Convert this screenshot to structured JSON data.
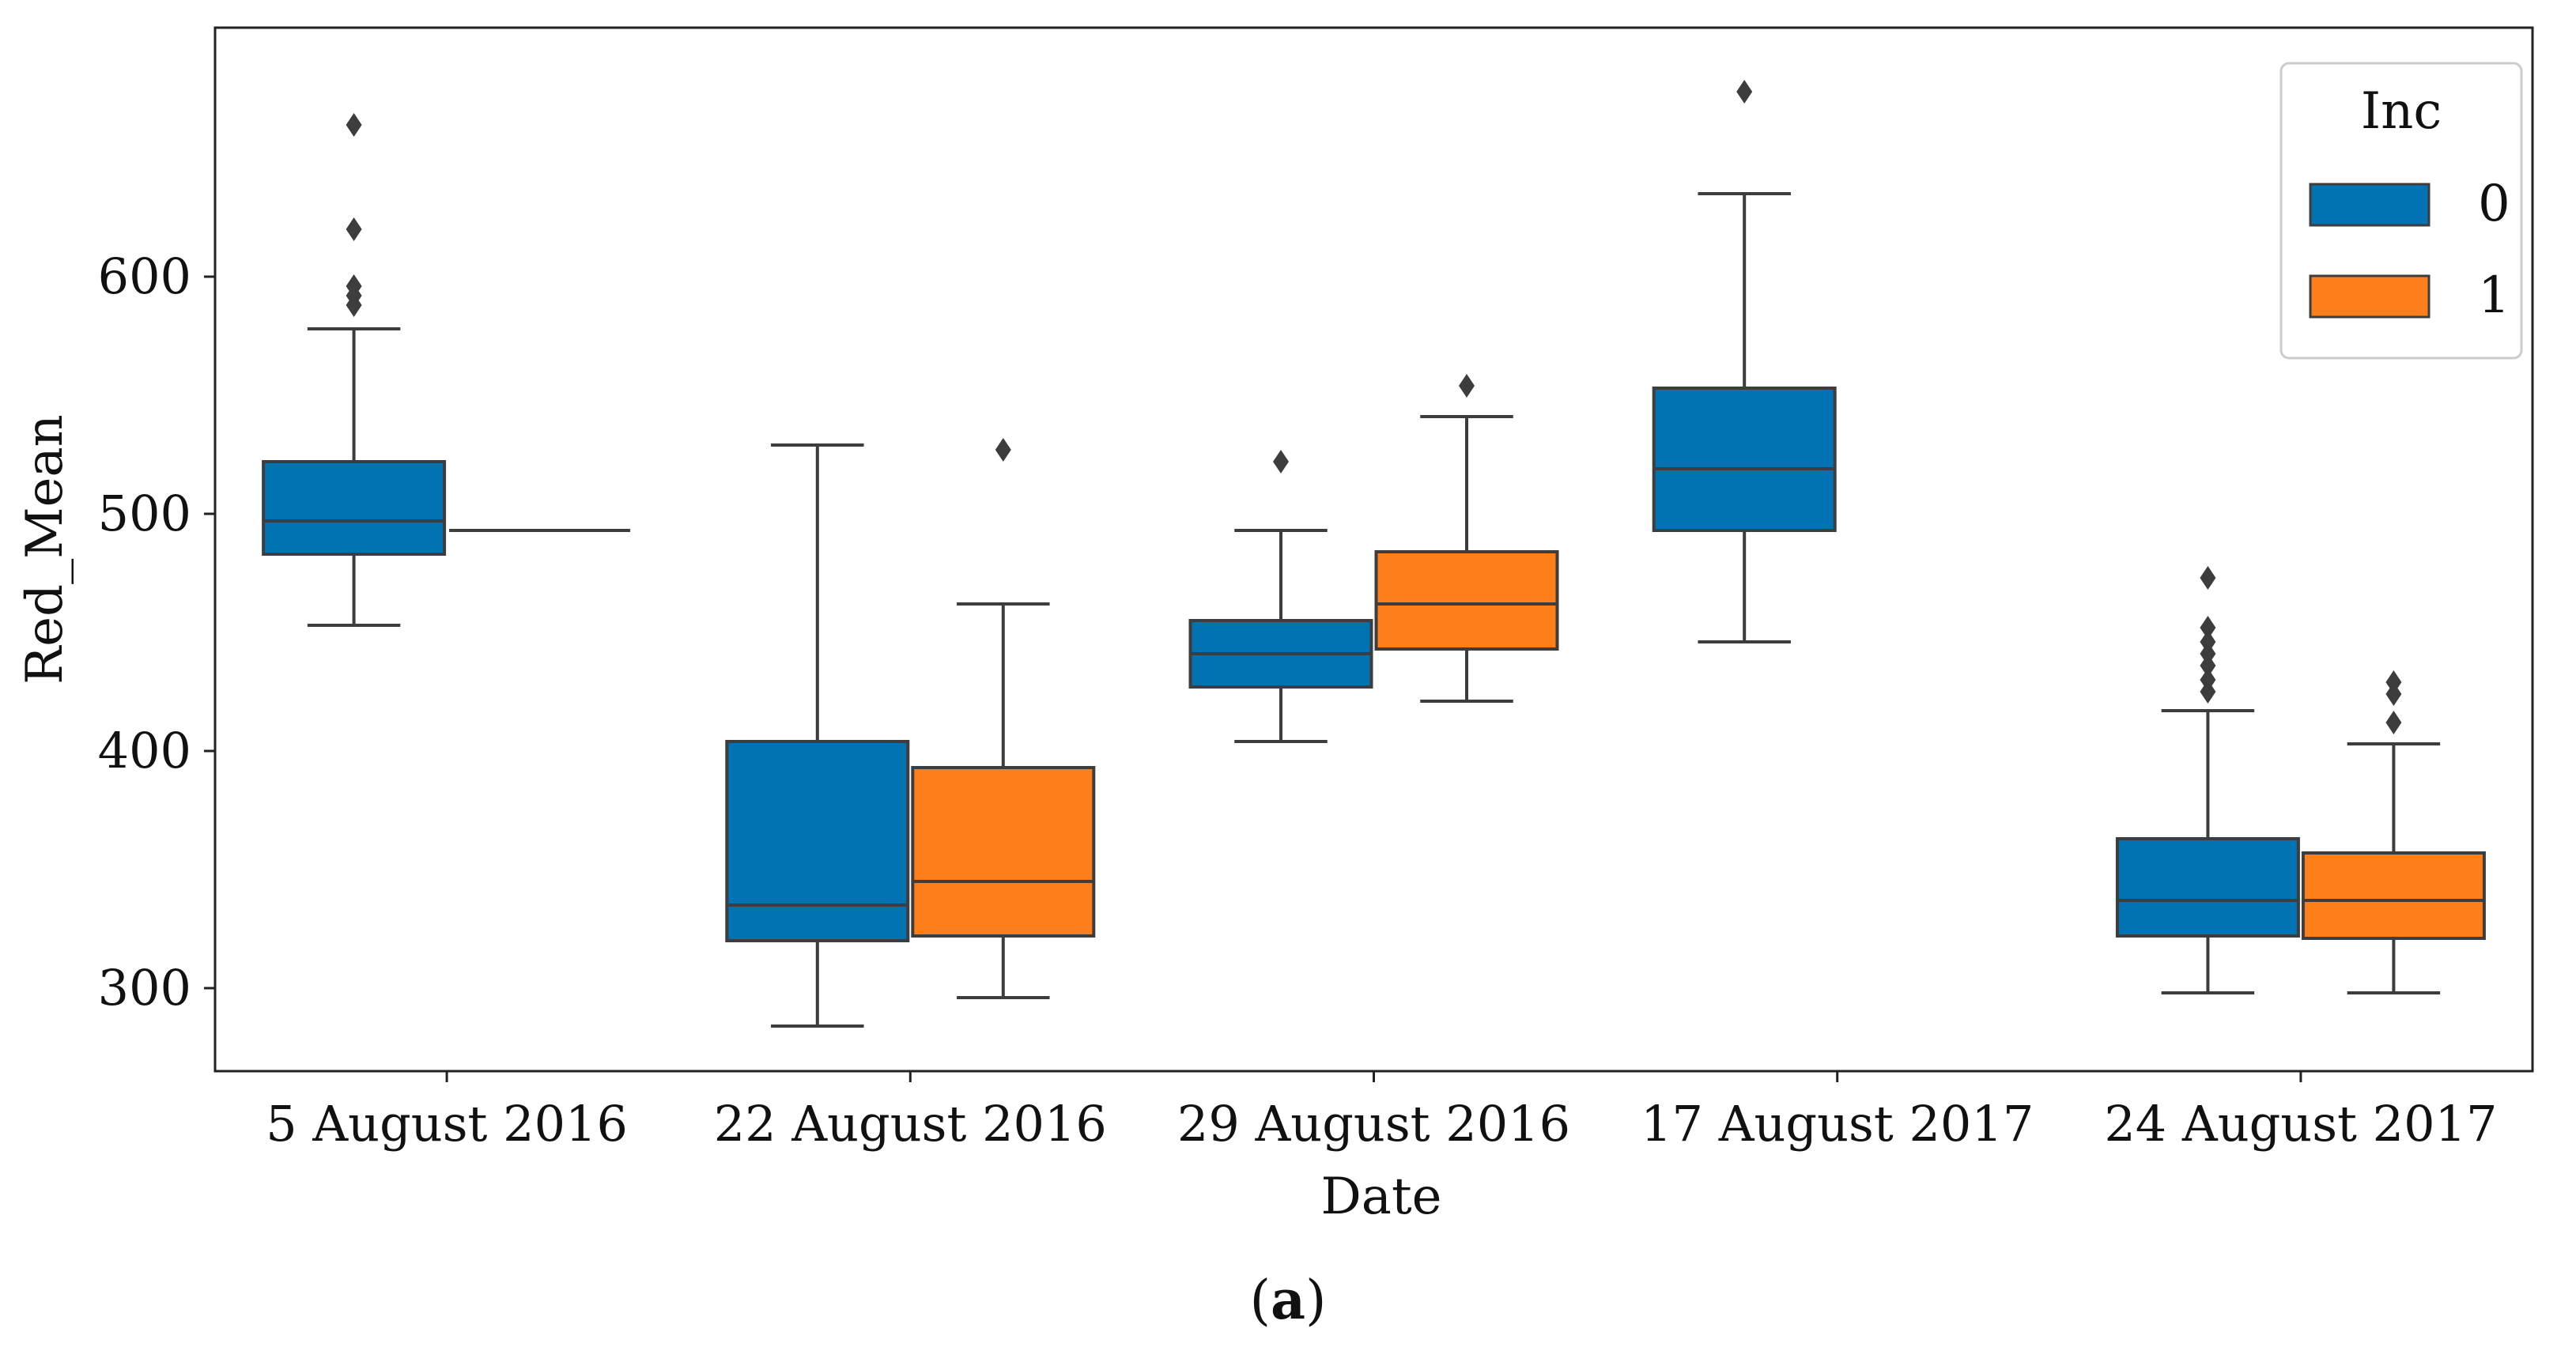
{
  "chart_data": {
    "type": "box",
    "title": "",
    "xlabel": "Date",
    "ylabel": "Red_Mean",
    "ylim": [
      265,
      705
    ],
    "yticks": [
      300,
      400,
      500,
      600
    ],
    "categories": [
      "5 August 2016",
      "22 August 2016",
      "29 August 2016",
      "17 August 2017",
      "24 August 2017"
    ],
    "legend": {
      "title": "Inc",
      "position": "top-right"
    },
    "series": [
      {
        "name": "0",
        "color": "#0173b2",
        "boxes": [
          {
            "category": "5 August 2016",
            "whislo": 453,
            "q1": 483,
            "med": 497,
            "q3": 522,
            "whishi": 578,
            "fliers": [
              588,
              592,
              596,
              620,
              664
            ]
          },
          {
            "category": "22 August 2016",
            "whislo": 284,
            "q1": 320,
            "med": 335,
            "q3": 404,
            "whishi": 529,
            "fliers": []
          },
          {
            "category": "29 August 2016",
            "whislo": 404,
            "q1": 427,
            "med": 441,
            "q3": 455,
            "whishi": 493,
            "fliers": [
              522
            ]
          },
          {
            "category": "17 August 2017",
            "whislo": 446,
            "q1": 493,
            "med": 519,
            "q3": 553,
            "whishi": 635,
            "fliers": [
              678
            ]
          },
          {
            "category": "24 August 2017",
            "whislo": 298,
            "q1": 322,
            "med": 337,
            "q3": 363,
            "whishi": 417,
            "fliers": [
              425,
              430,
              436,
              441,
              446,
              452,
              473
            ]
          }
        ]
      },
      {
        "name": "1",
        "color": "#fd7f1a",
        "boxes": [
          {
            "category": "5 August 2016",
            "whislo": 493,
            "q1": 493,
            "med": 493,
            "q3": 493,
            "whishi": 493,
            "fliers": []
          },
          {
            "category": "22 August 2016",
            "whislo": 296,
            "q1": 322,
            "med": 345,
            "q3": 393,
            "whishi": 462,
            "fliers": [
              527
            ]
          },
          {
            "category": "29 August 2016",
            "whislo": 421,
            "q1": 443,
            "med": 462,
            "q3": 484,
            "whishi": 541,
            "fliers": [
              554
            ]
          },
          {
            "category": "24 August 2017",
            "whislo": 298,
            "q1": 321,
            "med": 337,
            "q3": 357,
            "whishi": 403,
            "fliers": [
              412,
              424,
              429
            ]
          }
        ]
      }
    ]
  },
  "caption": {
    "label": "a"
  }
}
